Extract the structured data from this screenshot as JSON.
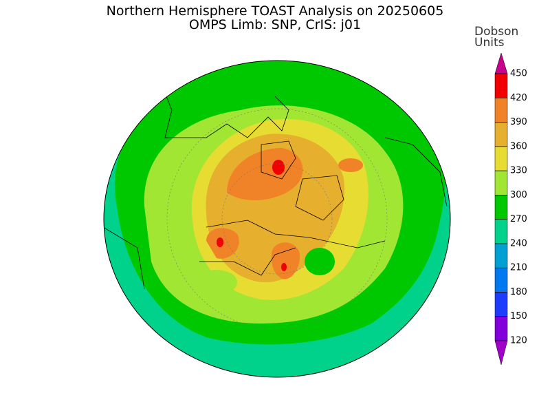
{
  "header": {
    "title_lines": [
      "Northern Hemisphere TOAST Analysis on 20250605",
      "OMPS Limb: SNP, CrIS: j01"
    ]
  },
  "colorbar": {
    "title_lines": [
      "Dobson",
      "Units"
    ],
    "levels": [
      120,
      150,
      180,
      210,
      240,
      270,
      300,
      330,
      360,
      390,
      420,
      450
    ],
    "colors": [
      "#a000c8",
      "#8200dc",
      "#1e3cff",
      "#0078f0",
      "#00a0d2",
      "#00d28c",
      "#00c800",
      "#a0e632",
      "#e6dc32",
      "#e6af2d",
      "#f08228",
      "#f00000",
      "#c8008c"
    ]
  }
}
